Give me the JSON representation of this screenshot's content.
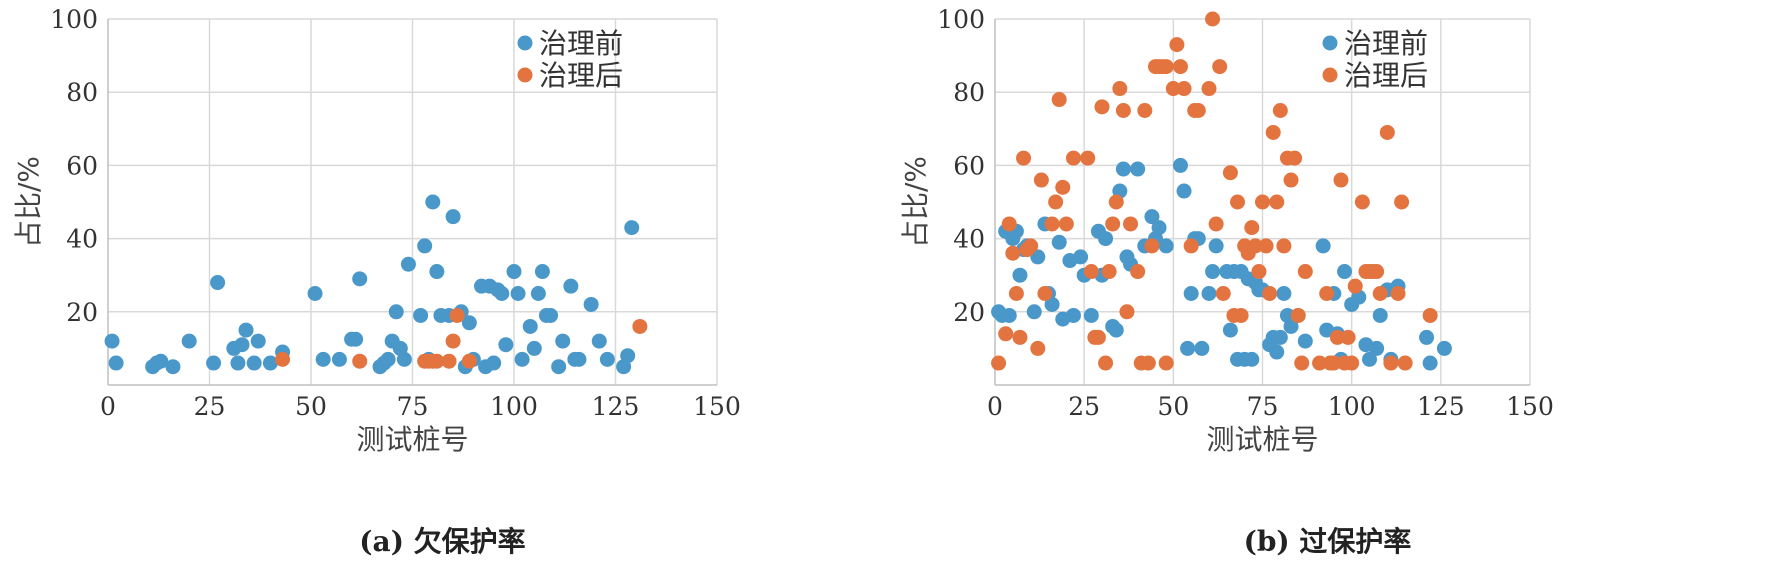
{
  "chart_data": [
    {
      "type": "scatter",
      "caption": "(a) 欠保护率",
      "xlabel": "测试桩号",
      "ylabel": "占比/%",
      "xlim": [
        0,
        150
      ],
      "ylim": [
        0,
        100
      ],
      "xticks": [
        0,
        25,
        50,
        75,
        100,
        125,
        150
      ],
      "yticks": [
        20,
        40,
        60,
        80,
        100
      ],
      "grid": true,
      "legend_position": "top-right",
      "series": [
        {
          "name": "治理前",
          "color": "#4a98c9",
          "points": [
            [
              1,
              12
            ],
            [
              2,
              6
            ],
            [
              11,
              5
            ],
            [
              12,
              6
            ],
            [
              13,
              6.5
            ],
            [
              16,
              5
            ],
            [
              20,
              12
            ],
            [
              26,
              6
            ],
            [
              27,
              28
            ],
            [
              31,
              10
            ],
            [
              32,
              6
            ],
            [
              33,
              11
            ],
            [
              34,
              15
            ],
            [
              36,
              6
            ],
            [
              37,
              12
            ],
            [
              40,
              6
            ],
            [
              43,
              9
            ],
            [
              51,
              25
            ],
            [
              53,
              7
            ],
            [
              57,
              7
            ],
            [
              60,
              12.5
            ],
            [
              61,
              12.5
            ],
            [
              62,
              29
            ],
            [
              67,
              5
            ],
            [
              68,
              6
            ],
            [
              69,
              7
            ],
            [
              70,
              12
            ],
            [
              71,
              20
            ],
            [
              72,
              10
            ],
            [
              73,
              7
            ],
            [
              74,
              33
            ],
            [
              77,
              19
            ],
            [
              78,
              38
            ],
            [
              79,
              7
            ],
            [
              80,
              50
            ],
            [
              81,
              31
            ],
            [
              82,
              19
            ],
            [
              84,
              19
            ],
            [
              85,
              46
            ],
            [
              87,
              20
            ],
            [
              88,
              5
            ],
            [
              89,
              17
            ],
            [
              90,
              7
            ],
            [
              92,
              27
            ],
            [
              93,
              5
            ],
            [
              94,
              27
            ],
            [
              95,
              6
            ],
            [
              96,
              26
            ],
            [
              97,
              25
            ],
            [
              98,
              11
            ],
            [
              100,
              31
            ],
            [
              101,
              25
            ],
            [
              102,
              7
            ],
            [
              104,
              16
            ],
            [
              105,
              10
            ],
            [
              106,
              25
            ],
            [
              107,
              31
            ],
            [
              108,
              19
            ],
            [
              109,
              19
            ],
            [
              111,
              5
            ],
            [
              112,
              12
            ],
            [
              114,
              27
            ],
            [
              115,
              7
            ],
            [
              116,
              7
            ],
            [
              119,
              22
            ],
            [
              121,
              12
            ],
            [
              123,
              7
            ],
            [
              127,
              5
            ],
            [
              128,
              8
            ],
            [
              129,
              43
            ]
          ]
        },
        {
          "name": "治理后",
          "color": "#e3743f",
          "points": [
            [
              43,
              7
            ],
            [
              62,
              6.5
            ],
            [
              78,
              6.5
            ],
            [
              79,
              6.5
            ],
            [
              80,
              6.5
            ],
            [
              81,
              6.5
            ],
            [
              84,
              6.5
            ],
            [
              85,
              12
            ],
            [
              86,
              19
            ],
            [
              89,
              6.5
            ],
            [
              131,
              16
            ]
          ]
        }
      ]
    },
    {
      "type": "scatter",
      "caption": "(b) 过保护率",
      "xlabel": "测试桩号",
      "ylabel": "占比/%",
      "xlim": [
        0,
        150
      ],
      "ylim": [
        0,
        100
      ],
      "xticks": [
        0,
        25,
        50,
        75,
        100,
        125,
        150
      ],
      "yticks": [
        20,
        40,
        60,
        80,
        100
      ],
      "grid": true,
      "legend_position": "top-right",
      "series": [
        {
          "name": "治理前",
          "color": "#4a98c9",
          "points": [
            [
              1,
              20
            ],
            [
              2,
              19
            ],
            [
              3,
              42
            ],
            [
              4,
              19
            ],
            [
              5,
              40
            ],
            [
              6,
              42
            ],
            [
              7,
              30
            ],
            [
              8,
              37
            ],
            [
              9,
              38
            ],
            [
              11,
              20
            ],
            [
              12,
              35
            ],
            [
              14,
              44
            ],
            [
              15,
              25
            ],
            [
              16,
              22
            ],
            [
              18,
              39
            ],
            [
              19,
              18
            ],
            [
              21,
              34
            ],
            [
              22,
              19
            ],
            [
              24,
              35
            ],
            [
              25,
              30
            ],
            [
              27,
              19
            ],
            [
              29,
              42
            ],
            [
              30,
              30
            ],
            [
              31,
              40
            ],
            [
              33,
              16
            ],
            [
              34,
              15
            ],
            [
              35,
              53
            ],
            [
              36,
              59
            ],
            [
              37,
              35
            ],
            [
              38,
              33
            ],
            [
              40,
              59
            ],
            [
              42,
              38
            ],
            [
              44,
              46
            ],
            [
              45,
              40
            ],
            [
              46,
              43
            ],
            [
              48,
              38
            ],
            [
              52,
              60
            ],
            [
              53,
              53
            ],
            [
              54,
              10
            ],
            [
              55,
              25
            ],
            [
              56,
              40
            ],
            [
              57,
              40
            ],
            [
              58,
              10
            ],
            [
              60,
              25
            ],
            [
              61,
              31
            ],
            [
              62,
              38
            ],
            [
              65,
              31
            ],
            [
              66,
              15
            ],
            [
              67,
              31
            ],
            [
              68,
              7
            ],
            [
              69,
              31
            ],
            [
              70,
              7
            ],
            [
              71,
              29
            ],
            [
              72,
              7
            ],
            [
              73,
              28
            ],
            [
              74,
              26
            ],
            [
              75,
              26
            ],
            [
              77,
              11
            ],
            [
              78,
              13
            ],
            [
              79,
              9
            ],
            [
              80,
              13
            ],
            [
              81,
              25
            ],
            [
              82,
              19
            ],
            [
              83,
              16
            ],
            [
              85,
              19
            ],
            [
              87,
              12
            ],
            [
              92,
              38
            ],
            [
              93,
              15
            ],
            [
              95,
              25
            ],
            [
              96,
              14
            ],
            [
              97,
              7
            ],
            [
              98,
              31
            ],
            [
              100,
              22
            ],
            [
              102,
              24
            ],
            [
              104,
              11
            ],
            [
              105,
              7
            ],
            [
              107,
              10
            ],
            [
              108,
              19
            ],
            [
              110,
              26
            ],
            [
              111,
              7
            ],
            [
              112,
              26
            ],
            [
              113,
              27
            ],
            [
              121,
              13
            ],
            [
              122,
              6
            ],
            [
              126,
              10
            ]
          ]
        },
        {
          "name": "治理后",
          "color": "#e3743f",
          "points": [
            [
              1,
              6
            ],
            [
              3,
              14
            ],
            [
              4,
              44
            ],
            [
              5,
              36
            ],
            [
              6,
              25
            ],
            [
              7,
              13
            ],
            [
              8,
              62
            ],
            [
              9,
              37
            ],
            [
              10,
              38
            ],
            [
              12,
              10
            ],
            [
              13,
              56
            ],
            [
              14,
              25
            ],
            [
              16,
              44
            ],
            [
              17,
              50
            ],
            [
              18,
              78
            ],
            [
              19,
              54
            ],
            [
              20,
              44
            ],
            [
              22,
              62
            ],
            [
              26,
              62
            ],
            [
              27,
              31
            ],
            [
              28,
              13
            ],
            [
              29,
              13
            ],
            [
              30,
              76
            ],
            [
              31,
              6
            ],
            [
              32,
              31
            ],
            [
              33,
              44
            ],
            [
              34,
              50
            ],
            [
              35,
              81
            ],
            [
              36,
              75
            ],
            [
              37,
              20
            ],
            [
              38,
              44
            ],
            [
              40,
              31
            ],
            [
              41,
              6
            ],
            [
              42,
              75
            ],
            [
              43,
              6
            ],
            [
              44,
              38
            ],
            [
              45,
              87
            ],
            [
              46,
              87
            ],
            [
              47,
              87
            ],
            [
              48,
              87
            ],
            [
              48,
              6
            ],
            [
              50,
              81
            ],
            [
              51,
              93
            ],
            [
              52,
              87
            ],
            [
              53,
              81
            ],
            [
              55,
              38
            ],
            [
              56,
              75
            ],
            [
              57,
              75
            ],
            [
              60,
              81
            ],
            [
              61,
              100
            ],
            [
              62,
              44
            ],
            [
              63,
              87
            ],
            [
              64,
              25
            ],
            [
              66,
              58
            ],
            [
              67,
              19
            ],
            [
              68,
              50
            ],
            [
              69,
              19
            ],
            [
              70,
              38
            ],
            [
              71,
              36
            ],
            [
              72,
              43
            ],
            [
              73,
              38
            ],
            [
              74,
              31
            ],
            [
              75,
              50
            ],
            [
              76,
              38
            ],
            [
              77,
              25
            ],
            [
              78,
              69
            ],
            [
              79,
              50
            ],
            [
              80,
              75
            ],
            [
              81,
              38
            ],
            [
              82,
              62
            ],
            [
              83,
              56
            ],
            [
              84,
              62
            ],
            [
              85,
              19
            ],
            [
              86,
              6
            ],
            [
              87,
              31
            ],
            [
              91,
              6
            ],
            [
              93,
              25
            ],
            [
              94,
              6
            ],
            [
              95,
              6
            ],
            [
              96,
              13
            ],
            [
              97,
              56
            ],
            [
              98,
              6
            ],
            [
              99,
              13
            ],
            [
              100,
              6
            ],
            [
              101,
              27
            ],
            [
              103,
              50
            ],
            [
              104,
              31
            ],
            [
              105,
              31
            ],
            [
              106,
              31
            ],
            [
              107,
              31
            ],
            [
              108,
              25
            ],
            [
              110,
              69
            ],
            [
              111,
              6
            ],
            [
              113,
              25
            ],
            [
              114,
              50
            ],
            [
              115,
              6
            ],
            [
              122,
              19
            ]
          ]
        }
      ]
    }
  ]
}
